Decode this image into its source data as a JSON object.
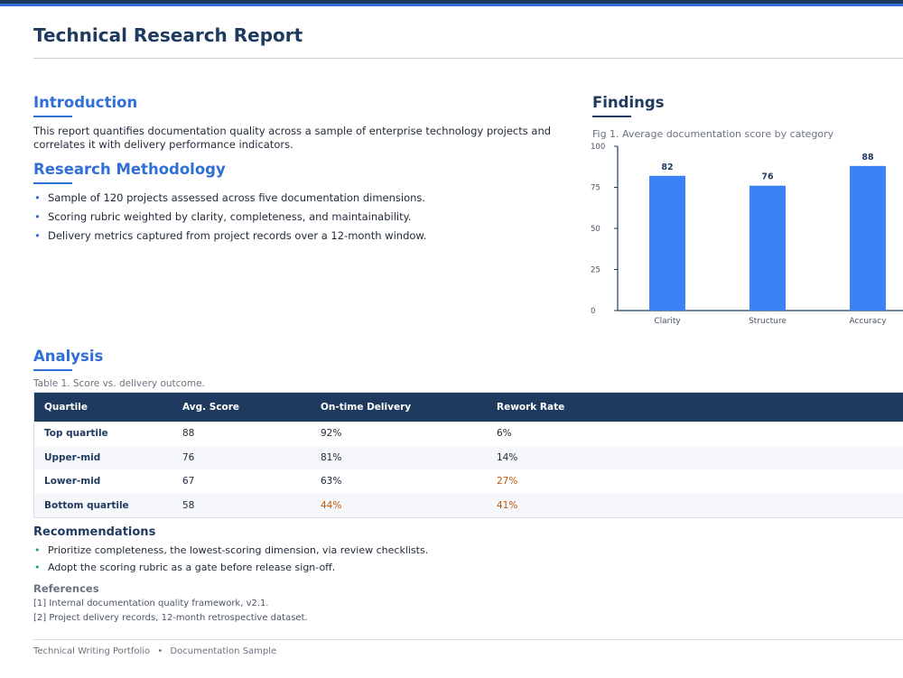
{
  "header": {
    "title": "Technical Research Report"
  },
  "introduction": {
    "heading": "Introduction",
    "text": "This report quantifies documentation quality across a sample of enterprise technology projects and correlates it with delivery performance indicators."
  },
  "methodology": {
    "heading": "Research Methodology",
    "bullets": [
      "Sample of 120 projects assessed across five documentation dimensions.",
      "Scoring rubric weighted by clarity, completeness, and maintainability.",
      "Delivery metrics captured from project records over a 12-month window."
    ]
  },
  "findings": {
    "heading": "Findings",
    "caption": "Fig 1. Average documentation score by category"
  },
  "chart_data": {
    "type": "bar",
    "title": "",
    "categories": [
      "Clarity",
      "Structure",
      "Accuracy"
    ],
    "values": [
      82,
      76,
      88
    ],
    "y_ticks": [
      0,
      25,
      50,
      75,
      100
    ],
    "ylim": [
      0,
      100
    ],
    "xlabel": "",
    "ylabel": "",
    "grid": false,
    "color": "#3b82f6"
  },
  "analysis": {
    "heading": "Analysis",
    "caption": "Table 1. Score vs. delivery outcome.",
    "columns": [
      "Quartile",
      "Avg. Score",
      "On-time Delivery",
      "Rework Rate"
    ],
    "rows": [
      [
        "Top quartile",
        "88",
        "92%",
        "6%"
      ],
      [
        "Upper-mid",
        "76",
        "81%",
        "14%"
      ],
      [
        "Lower-mid",
        "67",
        "63%",
        "27%"
      ],
      [
        "Bottom quartile",
        "58",
        "44%",
        "41%"
      ]
    ]
  },
  "recommendations": {
    "heading": "Recommendations",
    "bullets": [
      "Prioritize completeness, the lowest-scoring dimension, via review checklists.",
      "Adopt the scoring rubric as a gate before release sign-off."
    ]
  },
  "references": {
    "heading": "References",
    "items": [
      "[1] Internal documentation quality framework, v2.1.",
      "[2] Project delivery records, 12-month retrospective dataset."
    ]
  },
  "footer": {
    "left": "Technical Writing Portfolio",
    "separator": "•",
    "right": "Documentation Sample"
  },
  "colors": {
    "navy": "#1e3a5f",
    "accent": "#2f6fd6",
    "bar": "#3b82f6",
    "warning": "#c2560c",
    "bullet_green": "#13a389"
  }
}
